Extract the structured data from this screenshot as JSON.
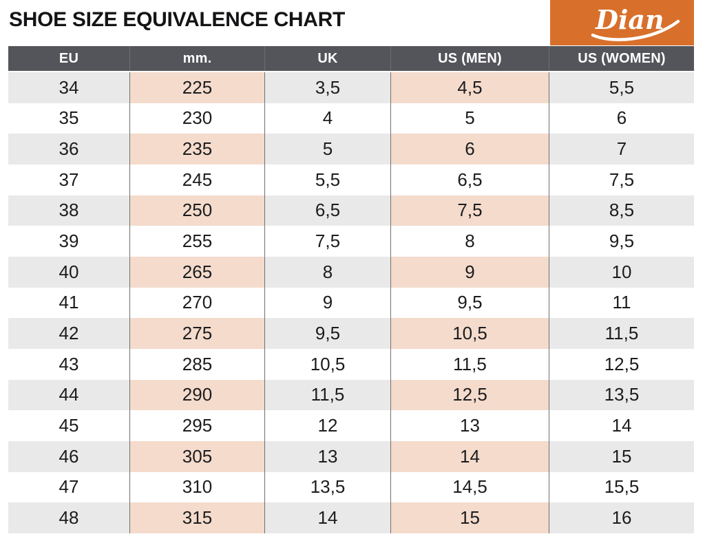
{
  "title": "SHOE SIZE EQUIVALENCE CHART",
  "logo": {
    "text": "Dian"
  },
  "colors": {
    "logo_orange": "#D8702C",
    "header_gray": "#54555A",
    "stripe_gray": "#E9E9E9",
    "stripe_pink": "#F4DBCC",
    "text_dark": "#1C1C1E",
    "column_line": "#6E6E70"
  },
  "chart_data": {
    "type": "table",
    "title": "SHOE SIZE EQUIVALENCE CHART",
    "layout": {
      "grid": "off",
      "stripe_pattern": "alternating rows tinted, starting with first data row",
      "tinted_columns": [
        "mm.",
        "US (MEN)"
      ]
    },
    "columns": [
      {
        "key": "eu",
        "label": "EU",
        "tinted": false
      },
      {
        "key": "mm",
        "label": "mm.",
        "tinted": true
      },
      {
        "key": "uk",
        "label": "UK",
        "tinted": false
      },
      {
        "key": "us_men",
        "label": "US (MEN)",
        "tinted": true
      },
      {
        "key": "us_women",
        "label": "US (WOMEN)",
        "tinted": false
      }
    ],
    "rows": [
      [
        "34",
        "225",
        "3,5",
        "4,5",
        "5,5"
      ],
      [
        "35",
        "230",
        "4",
        "5",
        "6"
      ],
      [
        "36",
        "235",
        "5",
        "6",
        "7"
      ],
      [
        "37",
        "245",
        "5,5",
        "6,5",
        "7,5"
      ],
      [
        "38",
        "250",
        "6,5",
        "7,5",
        "8,5"
      ],
      [
        "39",
        "255",
        "7,5",
        "8",
        "9,5"
      ],
      [
        "40",
        "265",
        "8",
        "9",
        "10"
      ],
      [
        "41",
        "270",
        "9",
        "9,5",
        "11"
      ],
      [
        "42",
        "275",
        "9,5",
        "10,5",
        "11,5"
      ],
      [
        "43",
        "285",
        "10,5",
        "11,5",
        "12,5"
      ],
      [
        "44",
        "290",
        "11,5",
        "12,5",
        "13,5"
      ],
      [
        "45",
        "295",
        "12",
        "13",
        "14"
      ],
      [
        "46",
        "305",
        "13",
        "14",
        "15"
      ],
      [
        "47",
        "310",
        "13,5",
        "14,5",
        "15,5"
      ],
      [
        "48",
        "315",
        "14",
        "15",
        "16"
      ]
    ]
  }
}
